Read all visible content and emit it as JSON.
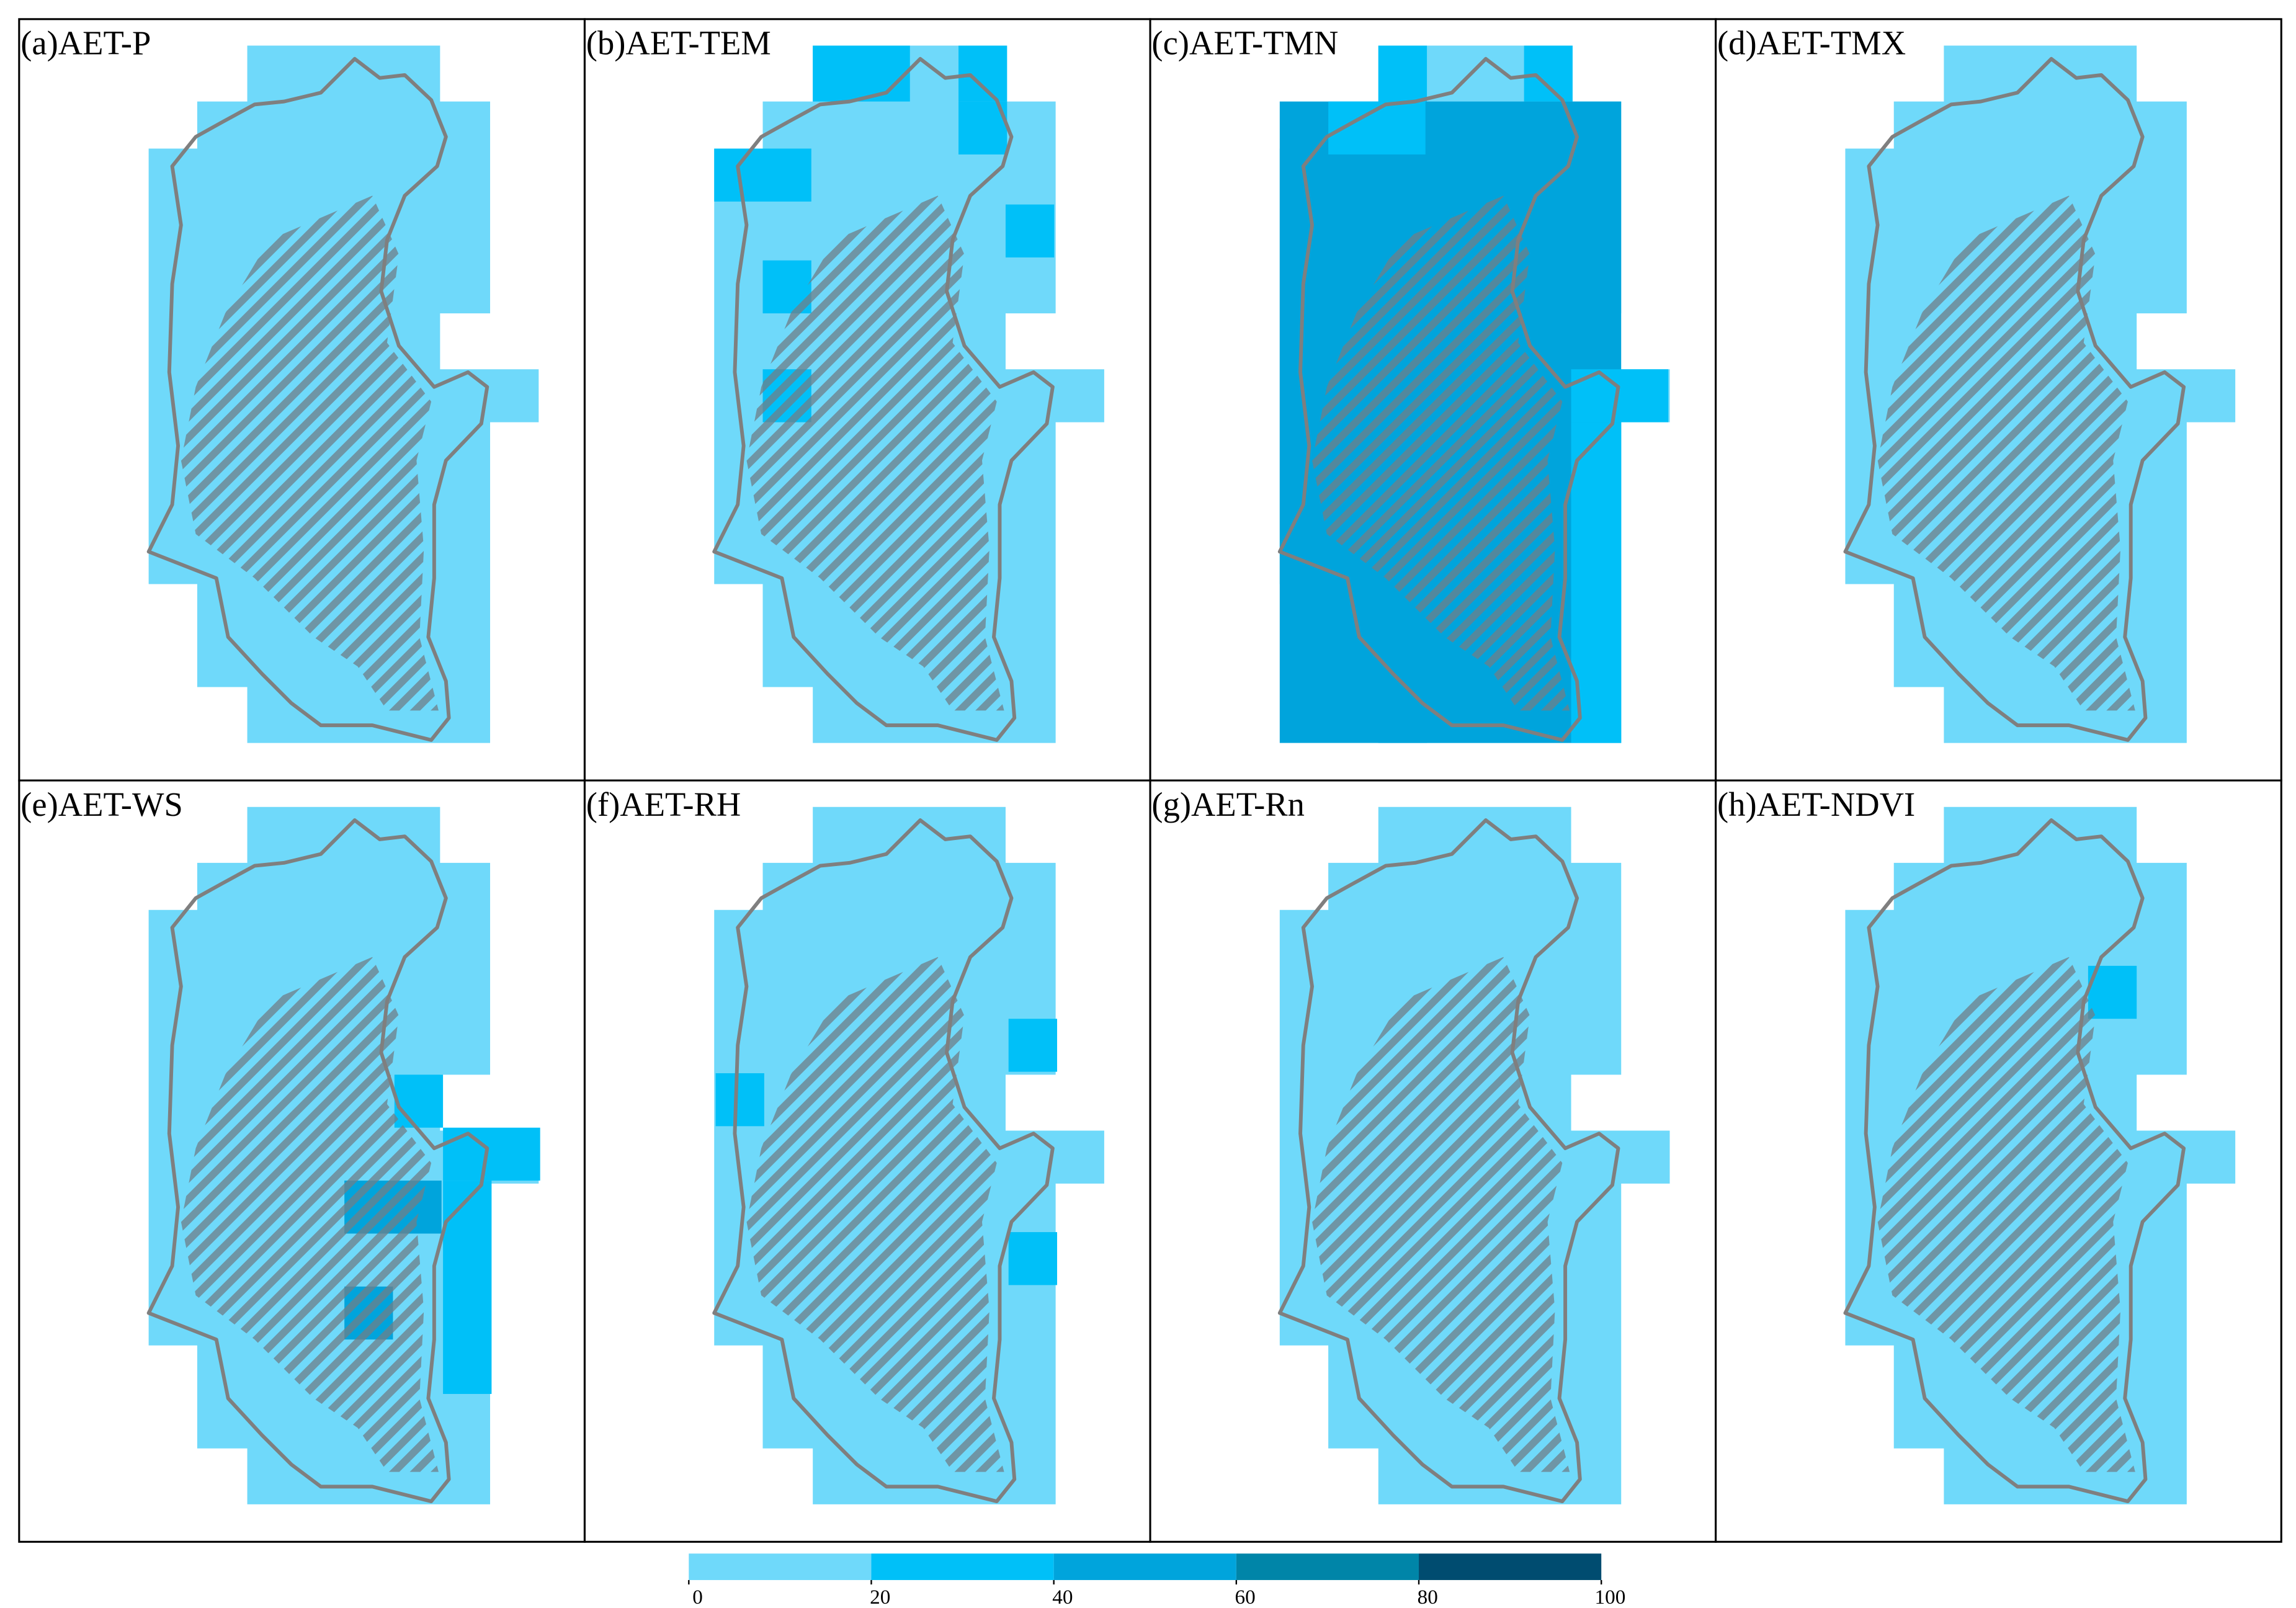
{
  "panels": [
    {
      "title": "(a)AET-P"
    },
    {
      "title": "(b)AET-TEM"
    },
    {
      "title": "(c)AET-TMN"
    },
    {
      "title": "(d)AET-TMX"
    },
    {
      "title": "(e)AET-WS"
    },
    {
      "title": "(f)AET-RH"
    },
    {
      "title": "(g)AET-Rn"
    },
    {
      "title": "(h)AET-NDVI"
    }
  ],
  "colorbar": {
    "ticks": [
      0,
      20,
      40,
      60,
      80,
      100
    ],
    "colors": [
      "#6fd9fa",
      "#00c0f8",
      "#00a4dc",
      "#0085a8",
      "#004c70"
    ]
  }
}
